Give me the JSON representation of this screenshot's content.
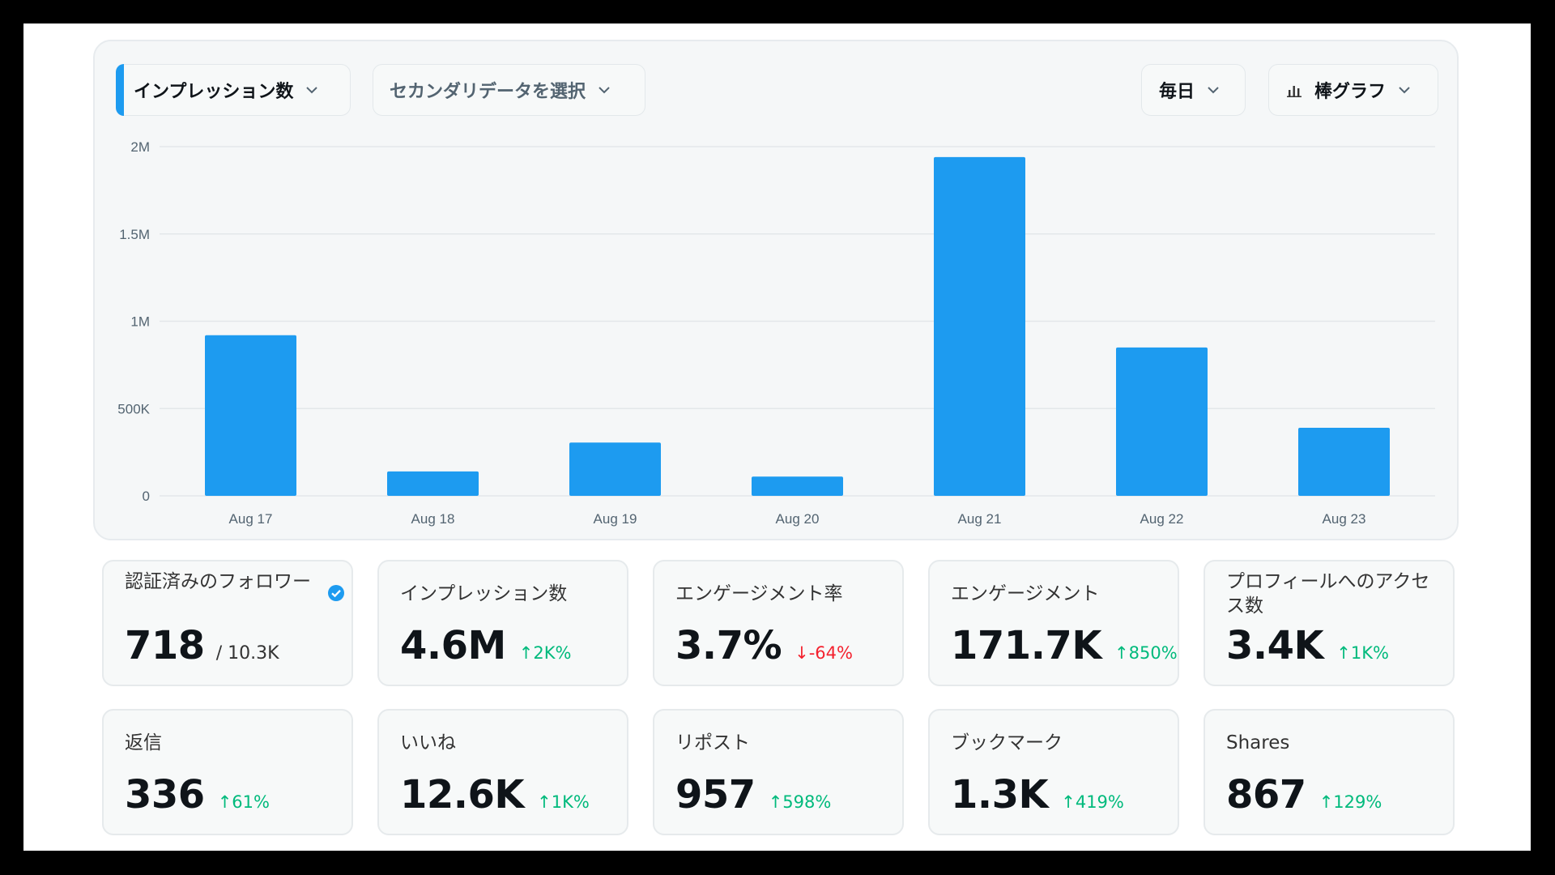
{
  "toolbar": {
    "primary_metric": "インプレッション数",
    "secondary_metric": "セカンダリデータを選択",
    "interval": "毎日",
    "chart_type": "棒グラフ",
    "chart_type_icon": "bar-chart-icon",
    "dropdown_icon": "chevron-down-icon"
  },
  "colors": {
    "accent": "#1d9bf0",
    "positive": "#00ba7c",
    "negative": "#f4212e",
    "verified": "#1d9bf0"
  },
  "chart_data": {
    "type": "bar",
    "categories": [
      "Aug 17",
      "Aug 18",
      "Aug 19",
      "Aug 20",
      "Aug 21",
      "Aug 22",
      "Aug 23"
    ],
    "values": [
      920000,
      140000,
      305000,
      110000,
      1940000,
      850000,
      390000
    ],
    "y_ticks": [
      {
        "value": 0,
        "label": "0"
      },
      {
        "value": 500000,
        "label": "500K"
      },
      {
        "value": 1000000,
        "label": "1M"
      },
      {
        "value": 1500000,
        "label": "1.5M"
      },
      {
        "value": 2000000,
        "label": "2M"
      }
    ],
    "ylim": [
      0,
      2000000
    ],
    "grid": true,
    "bar_color": "#1d9bf0",
    "title": "",
    "xlabel": "",
    "ylabel": ""
  },
  "cards": [
    {
      "label": "認証済みのフォロワー",
      "value": "718",
      "sub": "/ 10.3K",
      "delta": "",
      "trend": "",
      "verified_icon": "verified-badge-icon"
    },
    {
      "label": "インプレッション数",
      "value": "4.6M",
      "sub": "",
      "delta": "↑2K%",
      "trend": "up"
    },
    {
      "label": "エンゲージメント率",
      "value": "3.7%",
      "sub": "",
      "delta": "↓-64%",
      "trend": "down"
    },
    {
      "label": "エンゲージメント",
      "value": "171.7K",
      "sub": "",
      "delta": "↑850%",
      "trend": "up"
    },
    {
      "label": "プロフィールへのアクセス数",
      "value": "3.4K",
      "sub": "",
      "delta": "↑1K%",
      "trend": "up"
    },
    {
      "label": "返信",
      "value": "336",
      "sub": "",
      "delta": "↑61%",
      "trend": "up"
    },
    {
      "label": "いいね",
      "value": "12.6K",
      "sub": "",
      "delta": "↑1K%",
      "trend": "up"
    },
    {
      "label": "リポスト",
      "value": "957",
      "sub": "",
      "delta": "↑598%",
      "trend": "up"
    },
    {
      "label": "ブックマーク",
      "value": "1.3K",
      "sub": "",
      "delta": "↑419%",
      "trend": "up"
    },
    {
      "label": "Shares",
      "value": "867",
      "sub": "",
      "delta": "↑129%",
      "trend": "up"
    }
  ]
}
